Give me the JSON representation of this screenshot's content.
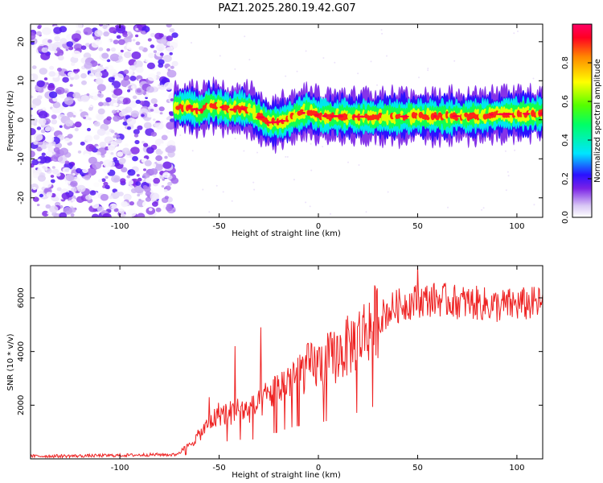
{
  "chart_data": [
    {
      "type": "heatmap",
      "title": "PAZ1.2025.280.19.42.G07",
      "xlabel": "Height of straight line (km)",
      "ylabel": "Frequency (Hz)",
      "xlim": [
        -145,
        113
      ],
      "ylim": [
        -25,
        24.5
      ],
      "x_ticks": [
        "-100",
        "-50",
        "0",
        "50",
        "100"
      ],
      "x_tick_values": [
        -100,
        -50,
        0,
        50,
        100
      ],
      "y_ticks": [
        "-20",
        "-10",
        "0",
        "10",
        "20"
      ],
      "y_tick_values": [
        -20,
        -10,
        0,
        10,
        20
      ],
      "noise_region": {
        "x": [
          -145,
          -72
        ],
        "amplitude": [
          0,
          0.2
        ]
      },
      "ridge": {
        "x": [
          -72,
          -65,
          -60,
          -55,
          -50,
          -45,
          -40,
          -35,
          -30,
          -25,
          -20,
          -15,
          -10,
          -5,
          0,
          10,
          20,
          30,
          40,
          50,
          60,
          70,
          80,
          90,
          100,
          113
        ],
        "freq": [
          3,
          3.3,
          2.2,
          3.8,
          3.5,
          2.4,
          3.0,
          2.5,
          0.8,
          -0.7,
          -0.6,
          0.2,
          1.3,
          2.2,
          1.0,
          0.9,
          0.8,
          0.8,
          0.8,
          0.9,
          0.9,
          0.9,
          1.0,
          1.4,
          1.5,
          1.6
        ]
      },
      "colorbar": {
        "label": "Normalized spectral amplitude",
        "range": [
          0,
          1
        ],
        "ticks": [
          "0.0",
          "0.2",
          "0.4",
          "0.6",
          "0.8"
        ],
        "tick_values": [
          0,
          0.2,
          0.4,
          0.6,
          0.8
        ]
      }
    },
    {
      "type": "line",
      "xlabel": "Height of straight line (km)",
      "ylabel": "SNR (10 * v/v)",
      "xlim": [
        -145,
        113
      ],
      "ylim": [
        0,
        7200
      ],
      "x_ticks": [
        "-100",
        "-50",
        "0",
        "50",
        "100"
      ],
      "x_tick_values": [
        -100,
        -50,
        0,
        50,
        100
      ],
      "y_ticks": [
        "2000",
        "4000",
        "6000"
      ],
      "y_tick_values": [
        2000,
        4000,
        6000
      ],
      "color": "#ee2222",
      "series": [
        {
          "name": "SNR",
          "x": [
            -145,
            -120,
            -100,
            -80,
            -72,
            -68,
            -65,
            -60,
            -55,
            -50,
            -45,
            -40,
            -35,
            -30,
            -25,
            -20,
            -15,
            -10,
            -5,
            0,
            5,
            10,
            15,
            20,
            25,
            30,
            35,
            40,
            50,
            60,
            70,
            80,
            90,
            100,
            113
          ],
          "values": [
            100,
            110,
            130,
            160,
            150,
            350,
            500,
            900,
            1300,
            1700,
            1700,
            1850,
            1800,
            2000,
            2400,
            2600,
            3000,
            3200,
            3400,
            3500,
            3700,
            3900,
            4200,
            4500,
            4900,
            5200,
            5500,
            5700,
            5900,
            5950,
            5850,
            5800,
            5700,
            5750,
            5800
          ]
        }
      ],
      "spikes": [
        {
          "x": -42,
          "y": 4200
        },
        {
          "x": -29,
          "y": 4900
        },
        {
          "x": -55,
          "y": 2300
        },
        {
          "x": 50,
          "y": 7200
        }
      ]
    }
  ]
}
